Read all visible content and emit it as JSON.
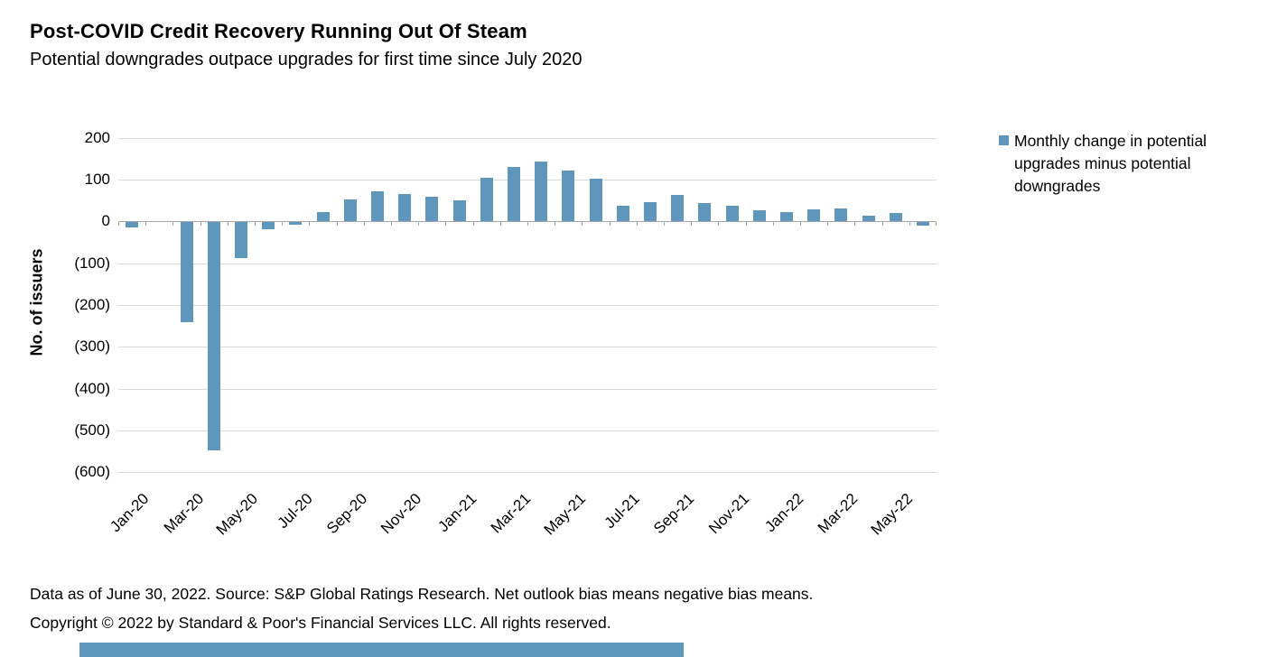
{
  "header": {
    "title": "Post-COVID Credit Recovery Running Out Of Steam",
    "subtitle": "Potential downgrades outpace upgrades for first time since July 2020"
  },
  "chart_data": {
    "type": "bar",
    "title": "Post-COVID Credit Recovery Running Out Of Steam",
    "subtitle": "Potential downgrades outpace upgrades for first time since July 2020",
    "ylabel": "No. of issuers",
    "xlabel": "",
    "categories": [
      "Jan-20",
      "Feb-20",
      "Mar-20",
      "Apr-20",
      "May-20",
      "Jun-20",
      "Jul-20",
      "Aug-20",
      "Sep-20",
      "Oct-20",
      "Nov-20",
      "Dec-20",
      "Jan-21",
      "Feb-21",
      "Mar-21",
      "Apr-21",
      "May-21",
      "Jun-21",
      "Jul-21",
      "Aug-21",
      "Sep-21",
      "Oct-21",
      "Nov-21",
      "Dec-21",
      "Jan-22",
      "Feb-22",
      "Mar-22",
      "Apr-22",
      "May-22",
      "Jun-22"
    ],
    "values": [
      -13,
      0,
      -240,
      -545,
      -85,
      -17,
      -5,
      22,
      52,
      71,
      66,
      59,
      51,
      104,
      130,
      143,
      121,
      102,
      37,
      45,
      64,
      43,
      37,
      26,
      23,
      29,
      31,
      14,
      20,
      -9
    ],
    "series_name": "Monthly change in potential upgrades minus potential downgrades",
    "ylim": [
      -600,
      200
    ],
    "yticks": [
      200,
      100,
      0,
      -100,
      -200,
      -300,
      -400,
      -500,
      -600
    ],
    "ytick_labels": [
      "200",
      "100",
      "0",
      "(100)",
      "(200)",
      "(300)",
      "(400)",
      "(500)",
      "(600)"
    ],
    "xtick_labels_shown": [
      "Jan-20",
      "Mar-20",
      "May-20",
      "Jul-20",
      "Sep-20",
      "Nov-20",
      "Jan-21",
      "Mar-21",
      "May-21",
      "Jul-21",
      "Sep-21",
      "Nov-21",
      "Jan-22",
      "Mar-22",
      "May-22"
    ],
    "grid": "horizontal",
    "legend_position": "right",
    "bar_color": "#5f96bc"
  },
  "legend": {
    "label": "Monthly change in potential upgrades minus potential downgrades",
    "marker_color": "#5f96bc"
  },
  "footer": {
    "line1": "Data as of June 30, 2022. Source: S&P Global Ratings Research. Net outlook bias means negative bias means.",
    "line2": "Copyright © 2022 by Standard & Poor's Financial Services LLC. All rights reserved."
  },
  "colors": {
    "bar": "#5f96bc",
    "gridline": "#d9d9d9",
    "axis": "#a6a6a6",
    "text": "#000000"
  }
}
